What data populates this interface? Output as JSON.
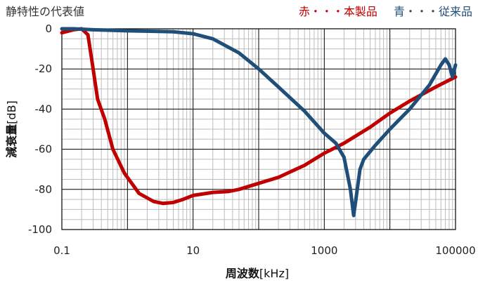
{
  "chart_data": {
    "type": "line",
    "title": "静特性の代表値",
    "xlabel": "周波数",
    "xlabel_unit": "[kHz]",
    "ylabel": "減衰量",
    "ylabel_unit": "[dB]",
    "x_scale": "log",
    "xlim": [
      0.1,
      100000
    ],
    "ylim": [
      -100,
      0
    ],
    "x_ticks": [
      0.1,
      10,
      1000,
      100000
    ],
    "x_tick_labels": [
      "0.1",
      "10",
      "1000",
      "100000"
    ],
    "y_ticks": [
      0,
      -20,
      -40,
      -60,
      -80,
      -100
    ],
    "y_tick_labels": [
      "0",
      "-20",
      "-40",
      "-60",
      "-80",
      "-100"
    ],
    "grid": true,
    "legend_position": "top-right",
    "series": [
      {
        "name": "赤・・・本製品",
        "color": "#c00000",
        "points": [
          [
            0.1,
            -2
          ],
          [
            0.15,
            -0.5
          ],
          [
            0.2,
            0
          ],
          [
            0.25,
            -3
          ],
          [
            0.3,
            -20
          ],
          [
            0.35,
            -35
          ],
          [
            0.45,
            -45
          ],
          [
            0.6,
            -60
          ],
          [
            0.9,
            -72
          ],
          [
            1.5,
            -82
          ],
          [
            2.5,
            -86
          ],
          [
            3.5,
            -87
          ],
          [
            5,
            -86.5
          ],
          [
            7,
            -85
          ],
          [
            10,
            -83
          ],
          [
            20,
            -81.5
          ],
          [
            35,
            -81
          ],
          [
            50,
            -80
          ],
          [
            100,
            -77
          ],
          [
            200,
            -74
          ],
          [
            500,
            -68
          ],
          [
            1000,
            -62
          ],
          [
            2000,
            -57
          ],
          [
            5000,
            -49
          ],
          [
            10000,
            -42
          ],
          [
            20000,
            -36
          ],
          [
            50000,
            -29
          ],
          [
            100000,
            -24
          ]
        ]
      },
      {
        "name": "青・・・従来品",
        "color": "#1f4e79",
        "points": [
          [
            0.1,
            0
          ],
          [
            0.15,
            0
          ],
          [
            0.3,
            -0.5
          ],
          [
            1,
            -1
          ],
          [
            3,
            -1.3
          ],
          [
            5,
            -1.5
          ],
          [
            10,
            -2.5
          ],
          [
            20,
            -5
          ],
          [
            50,
            -12
          ],
          [
            100,
            -20
          ],
          [
            200,
            -29
          ],
          [
            500,
            -41
          ],
          [
            1000,
            -52
          ],
          [
            1500,
            -57
          ],
          [
            2000,
            -64
          ],
          [
            2500,
            -80
          ],
          [
            2800,
            -93
          ],
          [
            3000,
            -86
          ],
          [
            3500,
            -70
          ],
          [
            4000,
            -65
          ],
          [
            6000,
            -58
          ],
          [
            10000,
            -50
          ],
          [
            20000,
            -40
          ],
          [
            40000,
            -28
          ],
          [
            60000,
            -18
          ],
          [
            70000,
            -15
          ],
          [
            80000,
            -18
          ],
          [
            90000,
            -24
          ],
          [
            100000,
            -18
          ]
        ]
      }
    ]
  }
}
